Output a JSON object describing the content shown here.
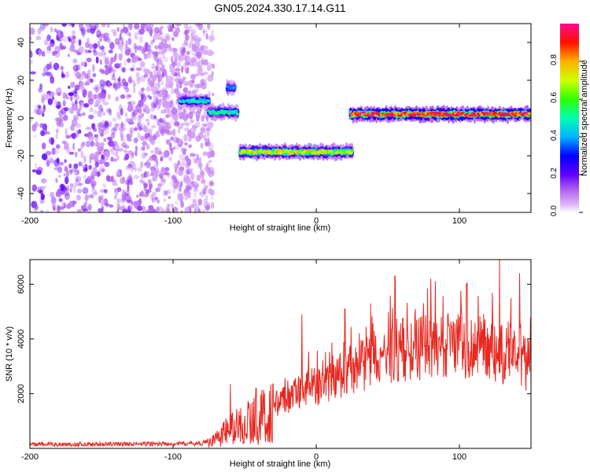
{
  "figure_title": "GN05.2024.330.17.14.G11",
  "chart_data": [
    {
      "type": "heatmap",
      "title": "GN05.2024.330.17.14.G11",
      "xlabel": "Height of straight line (km)",
      "ylabel": "Frequency (Hz)",
      "xlim": [
        -200,
        150
      ],
      "ylim": [
        -50,
        50
      ],
      "x_ticks": [
        -200,
        -100,
        0,
        100
      ],
      "y_ticks": [
        -40,
        -20,
        0,
        20,
        40
      ],
      "colorbar": {
        "label": "Normalized spectral amplitude",
        "range": [
          0,
          1
        ],
        "ticks": [
          0.0,
          0.2,
          0.4,
          0.6,
          0.8
        ],
        "tick_labels": [
          "0.0",
          "0.2",
          "0.4",
          "0.6",
          "0.8"
        ],
        "colors": [
          "#ffffff",
          "#c870f0",
          "#7a00ff",
          "#0000ff",
          "#00c8ff",
          "#00ff60",
          "#c8ff00",
          "#ffb000",
          "#ff0000",
          "#ff1493"
        ]
      },
      "features": [
        {
          "x_range": [
            -200,
            -72
          ],
          "frequency_range": [
            -50,
            50
          ],
          "amplitude": 0.05,
          "kind": "diffuse scatter"
        },
        {
          "x_range": [
            -95,
            -75
          ],
          "frequency": 9,
          "amplitude": 0.45
        },
        {
          "x_range": [
            -75,
            -55
          ],
          "frequency": 3,
          "amplitude": 0.5
        },
        {
          "x_range": [
            -62,
            -57
          ],
          "frequency": 16,
          "amplitude": 0.35
        },
        {
          "x_range": [
            -53,
            25
          ],
          "frequency": -18,
          "amplitude": 0.7
        },
        {
          "x_range": [
            24,
            150
          ],
          "frequency": 2,
          "amplitude": 0.9
        }
      ]
    },
    {
      "type": "line",
      "xlabel": "Height of straight line (km)",
      "ylabel": "SNR (10 * v/v)",
      "xlim": [
        -200,
        150
      ],
      "ylim": [
        0,
        6900
      ],
      "x_ticks": [
        -200,
        -100,
        0,
        100
      ],
      "y_ticks": [
        2000,
        4000,
        6000
      ],
      "color": "#e8271f",
      "envelope": [
        {
          "x": -200,
          "base": 150
        },
        {
          "x": -150,
          "base": 150
        },
        {
          "x": -80,
          "base": 180
        },
        {
          "x": -70,
          "base": 400
        },
        {
          "x": -60,
          "base": 800
        },
        {
          "x": -50,
          "base": 1000
        },
        {
          "x": -40,
          "base": 1200
        },
        {
          "x": -20,
          "base": 1900
        },
        {
          "x": 0,
          "base": 2300
        },
        {
          "x": 20,
          "base": 2800
        },
        {
          "x": 40,
          "base": 3200
        },
        {
          "x": 60,
          "base": 3600
        },
        {
          "x": 80,
          "base": 3700
        },
        {
          "x": 100,
          "base": 3800
        },
        {
          "x": 120,
          "base": 3600
        },
        {
          "x": 140,
          "base": 3300
        },
        {
          "x": 150,
          "base": 3000
        }
      ],
      "peaks": [
        {
          "x": -60,
          "y": 2350
        },
        {
          "x": -42,
          "y": 2200
        },
        {
          "x": -10,
          "y": 4900
        },
        {
          "x": 20,
          "y": 5100
        },
        {
          "x": 38,
          "y": 5300
        },
        {
          "x": 55,
          "y": 6300
        },
        {
          "x": 80,
          "y": 6200
        },
        {
          "x": 105,
          "y": 6000
        },
        {
          "x": 128,
          "y": 6900
        },
        {
          "x": 142,
          "y": 6400
        }
      ]
    }
  ]
}
